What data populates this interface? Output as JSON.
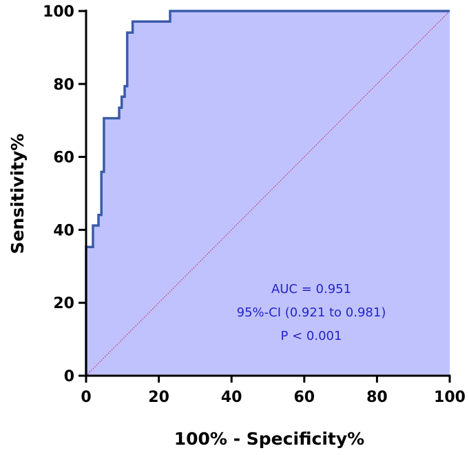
{
  "chart_data": {
    "type": "area",
    "xlabel": "100% - Specificity%",
    "ylabel": "Sensitivity%",
    "xlim": [
      0,
      100
    ],
    "ylim": [
      0,
      100
    ],
    "x_ticks": [
      0,
      20,
      40,
      60,
      80,
      100
    ],
    "y_ticks": [
      0,
      20,
      40,
      60,
      80,
      100
    ],
    "grid": false,
    "series": [
      {
        "points": [
          [
            0,
            0
          ],
          [
            0,
            35.3
          ],
          [
            1.9,
            35.3
          ],
          [
            1.9,
            41.2
          ],
          [
            3.4,
            41.2
          ],
          [
            3.4,
            44.1
          ],
          [
            4.2,
            44.1
          ],
          [
            4.2,
            55.9
          ],
          [
            4.9,
            55.9
          ],
          [
            4.9,
            70.6
          ],
          [
            9.1,
            70.6
          ],
          [
            9.1,
            73.5
          ],
          [
            9.8,
            73.5
          ],
          [
            9.8,
            76.5
          ],
          [
            10.6,
            76.5
          ],
          [
            10.6,
            79.4
          ],
          [
            11.3,
            79.4
          ],
          [
            11.3,
            94.1
          ],
          [
            12.8,
            94.1
          ],
          [
            12.8,
            97.1
          ],
          [
            23.1,
            97.1
          ],
          [
            23.1,
            100
          ],
          [
            100,
            100
          ]
        ],
        "line_color": "#3a5ba8",
        "fill_color": "#c0c2fe"
      },
      {
        "points": [
          [
            0,
            0
          ],
          [
            100,
            100
          ]
        ],
        "style": "dotted",
        "line_color": "#c03060"
      }
    ],
    "annotations": [
      "AUC = 0.951",
      "95%-CI (0.921 to 0.981)",
      "P < 0.001"
    ],
    "annotation_color": "#2424c8"
  }
}
